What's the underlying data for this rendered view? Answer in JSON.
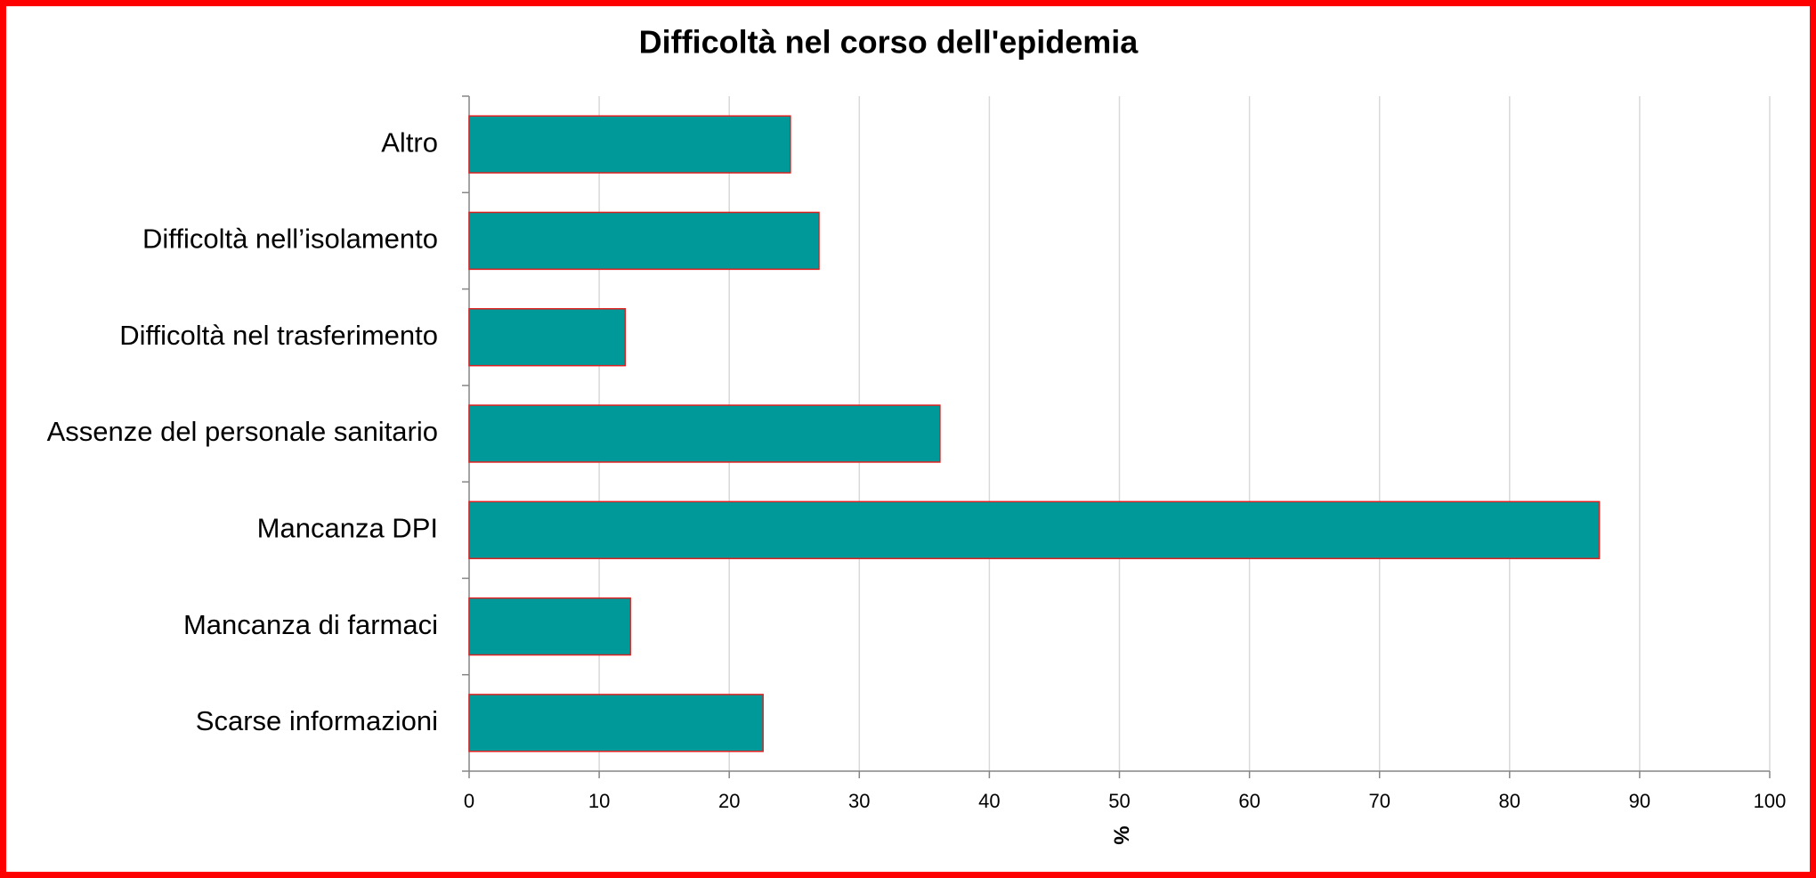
{
  "chart_data": {
    "type": "barh",
    "title": "Difficoltà nel corso dell'epidemia",
    "categories": [
      "Altro",
      "Difficoltà nell’isolamento",
      "Difficoltà nel trasferimento",
      "Assenze del personale sanitario",
      "Mancanza DPI",
      "Mancanza di farmaci",
      "Scarse informazioni"
    ],
    "values": [
      24.7,
      26.9,
      12.0,
      36.2,
      86.9,
      12.4,
      22.6
    ],
    "color": "#009999",
    "edge_color": "#e02020",
    "x_label": "%",
    "xlim": [
      0,
      100
    ],
    "xticks": [
      0,
      10,
      20,
      30,
      40,
      50,
      60,
      70,
      80,
      90,
      100
    ],
    "grid": true
  }
}
